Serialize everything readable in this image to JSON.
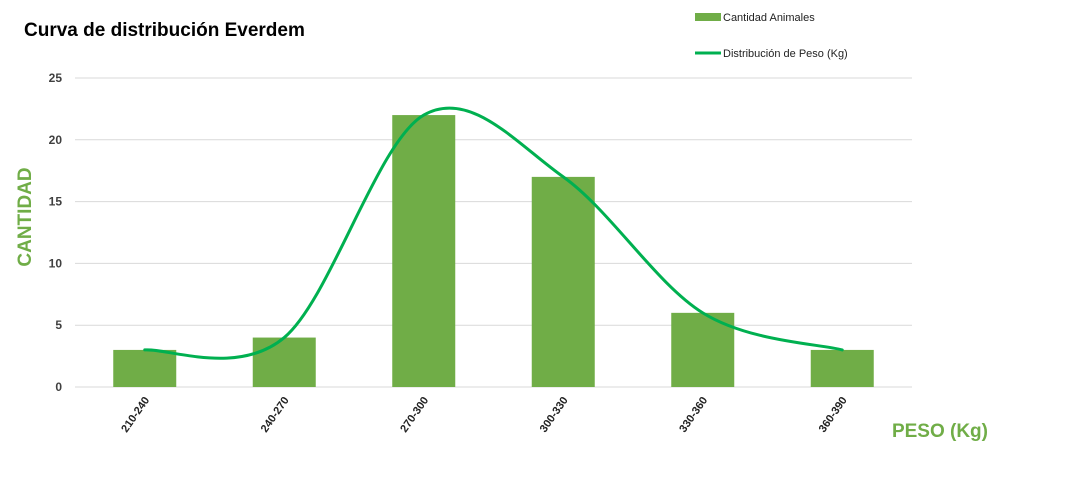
{
  "chart_data": {
    "type": "bar",
    "title": "Curva de distribución Everdem",
    "xlabel": "PESO (Kg)",
    "ylabel": "CANTIDAD",
    "categories": [
      "210-240",
      "240-270",
      "270-300",
      "300-330",
      "330-360",
      "360-390"
    ],
    "series": [
      {
        "name": "Cantidad Animales",
        "type": "bar",
        "values": [
          3,
          4,
          22,
          17,
          6,
          3
        ],
        "color": "#70ad47"
      },
      {
        "name": "Distribución de Peso (Kg)",
        "type": "line",
        "smooth": true,
        "values": [
          3,
          4,
          22,
          17,
          6,
          3
        ],
        "color": "#00b050"
      }
    ],
    "ylim": [
      0,
      25
    ],
    "yticks": [
      0,
      5,
      10,
      15,
      20,
      25
    ],
    "grid": true,
    "legend": "top-right"
  }
}
